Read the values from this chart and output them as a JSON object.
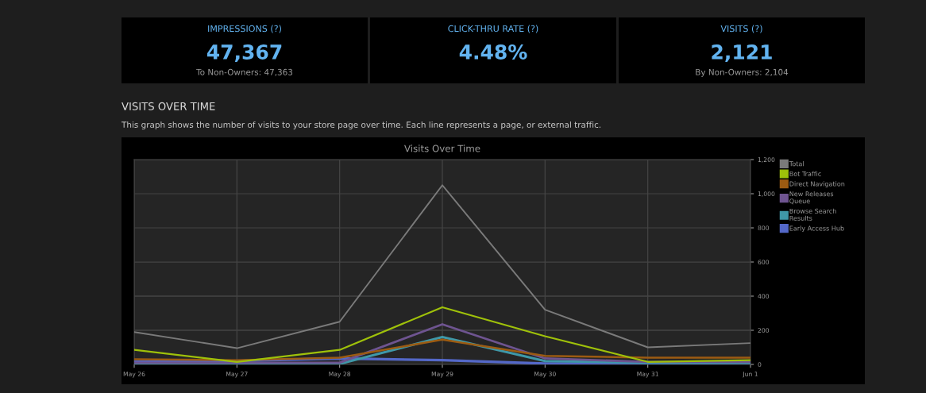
{
  "chart_data": [
    {
      "type": "other",
      "title": "IMPRESSIONS (?)",
      "annotations": [
        "47,367",
        "To Non-Owners: 47,363"
      ]
    },
    {
      "type": "other",
      "title": "CLICK-THRU RATE (?)",
      "annotations": [
        "4.48%"
      ]
    },
    {
      "type": "other",
      "title": "VISITS (?)",
      "annotations": [
        "2,121",
        "By Non-Owners: 2,104"
      ]
    },
    {
      "type": "line",
      "title": "Visits Over Time",
      "annotations": [
        "VISITS OVER TIME",
        "This graph shows the number of visits to your store page over time. Each line represents a page, or external traffic."
      ],
      "categories": [
        "May 26",
        "May 27",
        "May 28",
        "May 29",
        "May 30",
        "May 31",
        "Jun 1"
      ],
      "ylim": [
        0,
        1200
      ],
      "yticks": [
        0,
        200,
        400,
        600,
        800,
        {
          "value": 1000,
          "label": "1,000"
        },
        {
          "value": 1200,
          "label": "1,200"
        }
      ],
      "grid": true,
      "legend": "right",
      "marker": "none",
      "line_style": "solid",
      "series": [
        {
          "name": "Total",
          "color": "#7a7a7a",
          "values": [
            190,
            95,
            250,
            1050,
            320,
            100,
            125
          ]
        },
        {
          "name": "Bot Traffic",
          "color": "#9fc10a",
          "values": [
            85,
            15,
            85,
            335,
            165,
            15,
            25
          ]
        },
        {
          "name": "Direct Navigation",
          "color": "#9c5b12",
          "values": [
            30,
            25,
            40,
            145,
            50,
            40,
            40
          ]
        },
        {
          "name": "New Releases\nQueue",
          "color": "#6e5490",
          "values": [
            10,
            10,
            10,
            235,
            35,
            15,
            15
          ]
        },
        {
          "name": "Browse Search\nResults",
          "color": "#3f98a8",
          "values": [
            5,
            5,
            3,
            160,
            20,
            10,
            10
          ]
        },
        {
          "name": "Early Access Hub",
          "color": "#5468c8",
          "values": [
            15,
            20,
            35,
            25,
            5,
            5,
            10
          ]
        }
      ]
    }
  ]
}
